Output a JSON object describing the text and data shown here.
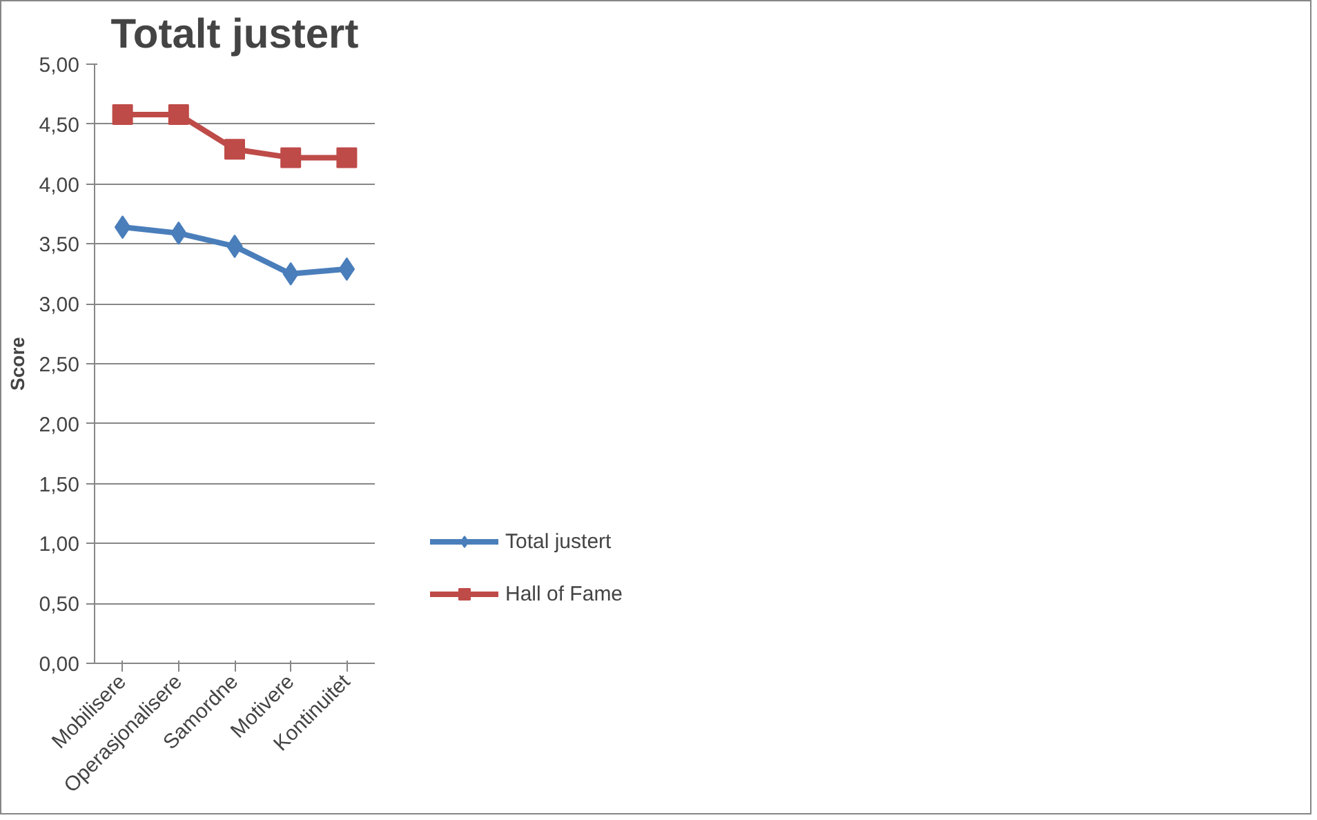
{
  "chart_data": {
    "type": "line",
    "title": "Totalt justert",
    "ylabel": "Score",
    "categories": [
      "Mobilisere",
      "Operasjonalisere",
      "Samordne",
      "Motivere",
      "Kontinuitet"
    ],
    "series": [
      {
        "name": "Total justert",
        "color": "#4a7ebb",
        "values": [
          3.64,
          3.59,
          3.48,
          3.25,
          3.29
        ],
        "marker": "diamond"
      },
      {
        "name": "Hall of Fame",
        "color": "#be4b48",
        "values": [
          4.58,
          4.58,
          4.29,
          4.22,
          4.22
        ],
        "marker": "square"
      }
    ],
    "ylim": [
      0,
      5
    ],
    "yticks": [
      {
        "value": 0,
        "label": "0,00"
      },
      {
        "value": 0.5,
        "label": "0,50"
      },
      {
        "value": 1,
        "label": "1,00"
      },
      {
        "value": 1.5,
        "label": "1,50"
      },
      {
        "value": 2,
        "label": "2,00"
      },
      {
        "value": 2.5,
        "label": "2,50"
      },
      {
        "value": 3,
        "label": "3,00"
      },
      {
        "value": 3.5,
        "label": "3,50"
      },
      {
        "value": 4,
        "label": "4,00"
      },
      {
        "value": 4.5,
        "label": "4,50"
      },
      {
        "value": 5,
        "label": "5,00"
      }
    ],
    "grid": "y",
    "legend": "right",
    "line_style": "solid"
  }
}
